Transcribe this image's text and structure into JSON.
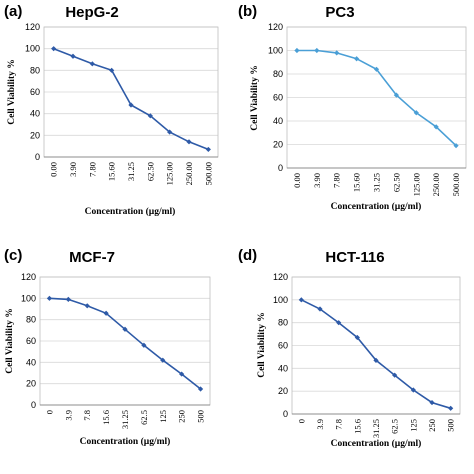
{
  "chart_data": [
    {
      "type": "line",
      "panel_label": "(a)",
      "title": "HepG-2",
      "xlabel": "Concentration (µg/ml)",
      "ylabel": "Cell Viability  %",
      "categories": [
        "0.00",
        "3.90",
        "7.80",
        "15.60",
        "31.25",
        "62.50",
        "125.00",
        "250.00",
        "500.00"
      ],
      "values": [
        100,
        93,
        86,
        80,
        48,
        38,
        23,
        14,
        7
      ],
      "ylim": [
        0,
        120
      ],
      "yticks": [
        "0",
        "20",
        "40",
        "60",
        "80",
        "100",
        "120"
      ],
      "grid": true,
      "color": "#2e5aa7"
    },
    {
      "type": "line",
      "panel_label": "(b)",
      "title": "PC3",
      "xlabel": "Concentration (µg/ml)",
      "ylabel": "Cell Viability  %",
      "categories": [
        "0.00",
        "3.90",
        "7.80",
        "15.60",
        "31.25",
        "62.50",
        "125.00",
        "250.00",
        "500.00"
      ],
      "values": [
        100,
        100,
        98,
        93,
        84,
        62,
        47,
        35,
        19
      ],
      "ylim": [
        0,
        120
      ],
      "yticks": [
        "0",
        "20",
        "40",
        "60",
        "80",
        "100",
        "120"
      ],
      "grid": true,
      "color": "#4a9fd6"
    },
    {
      "type": "line",
      "panel_label": "(c)",
      "title": "MCF-7",
      "xlabel": "Concentration (µg/ml)",
      "ylabel": "Cell Viability %",
      "categories": [
        "0",
        "3.9",
        "7.8",
        "15.6",
        "31.25",
        "62.5",
        "125",
        "250",
        "500"
      ],
      "values": [
        100,
        99,
        93,
        86,
        71,
        56,
        42,
        29,
        15
      ],
      "ylim": [
        0,
        120
      ],
      "yticks": [
        "0",
        "20",
        "40",
        "60",
        "80",
        "100",
        "120"
      ],
      "grid": true,
      "color": "#2e5aa7"
    },
    {
      "type": "line",
      "panel_label": "(d)",
      "title": "HCT-116",
      "xlabel": "Concentration (µg/ml)",
      "ylabel": "Cell Viability %",
      "categories": [
        "0",
        "3.9",
        "7.8",
        "15.6",
        "31.25",
        "62.5",
        "125",
        "250",
        "500"
      ],
      "values": [
        100,
        92,
        80,
        67,
        47,
        34,
        21,
        10,
        5
      ],
      "ylim": [
        0,
        120
      ],
      "yticks": [
        "0",
        "20",
        "40",
        "60",
        "80",
        "100",
        "120"
      ],
      "grid": true,
      "color": "#2e5aa7"
    }
  ]
}
